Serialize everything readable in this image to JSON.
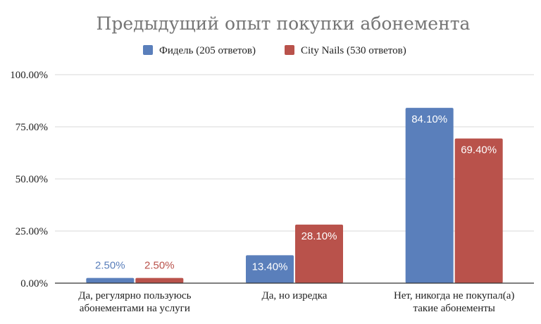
{
  "chart_data": {
    "type": "bar",
    "title": "Предыдущий опыт покупки абонемента",
    "categories": [
      [
        "Да, регулярно пользуюсь",
        "абонементами на услуги"
      ],
      [
        "Да, но изредка"
      ],
      [
        "Нет, никогда не покупал(а)",
        "такие абонементы"
      ]
    ],
    "series": [
      {
        "name": "Фидель (205 ответов)",
        "color": "#5a7fbb",
        "values": [
          2.5,
          13.4,
          84.1
        ],
        "labels": [
          "2.50%",
          "13.40%",
          "84.10%"
        ]
      },
      {
        "name": "City Nails (530 ответов)",
        "color": "#b9524b",
        "values": [
          2.5,
          28.1,
          69.4
        ],
        "labels": [
          "2.50%",
          "28.10%",
          "69.40%"
        ]
      }
    ],
    "ylim": [
      0,
      100
    ],
    "yticks": [
      0,
      25,
      50,
      75,
      100
    ],
    "ytick_labels": [
      "0.00%",
      "25.00%",
      "50.00%",
      "75.00%",
      "100.00%"
    ],
    "grid": true,
    "legend_position": "top-center"
  }
}
